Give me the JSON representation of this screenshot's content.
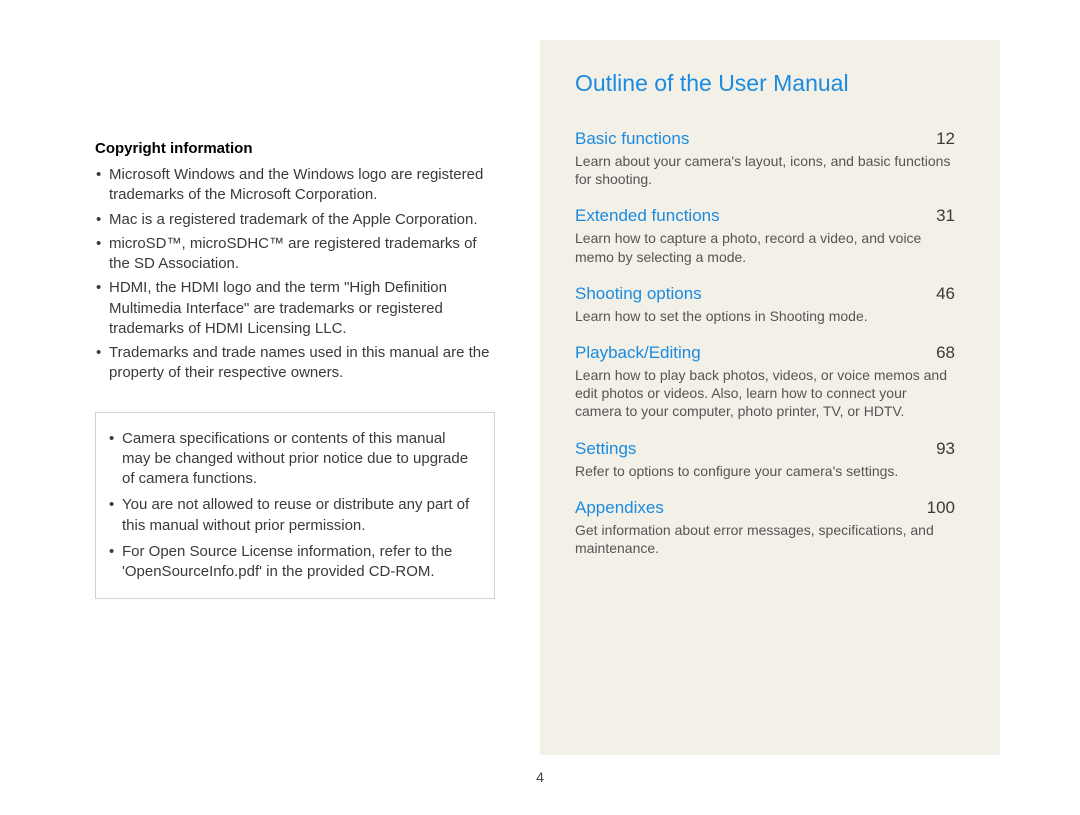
{
  "left": {
    "copyright_heading": "Copyright information",
    "copyright_items": [
      "Microsoft Windows and the Windows logo are registered trademarks of the Microsoft Corporation.",
      "Mac is a registered trademark of the Apple Corporation.",
      "microSD™, microSDHC™ are registered trademarks of the SD Association.",
      "HDMI, the HDMI logo and the term \"High Definition Multimedia Interface\" are trademarks or registered trademarks of HDMI Licensing LLC.",
      "Trademarks and trade names used in this manual are the property of their respective owners."
    ],
    "notice_items": [
      "Camera specifications or contents of this manual may be changed without prior notice due to upgrade of camera functions.",
      "You are not allowed to reuse or distribute any part of this manual without prior permission.",
      "For Open Source License information, refer to the 'OpenSourceInfo.pdf' in the provided CD-ROM."
    ]
  },
  "right": {
    "title": "Outline of the User Manual",
    "entries": [
      {
        "label": "Basic functions",
        "page": "12",
        "desc": "Learn about your camera's layout, icons, and basic functions for shooting."
      },
      {
        "label": "Extended functions",
        "page": "31",
        "desc": "Learn how to capture a photo, record a video, and voice memo by selecting a mode."
      },
      {
        "label": "Shooting options",
        "page": "46",
        "desc": "Learn how to set the options in Shooting mode."
      },
      {
        "label": "Playback/Editing",
        "page": "68",
        "desc": "Learn how to play back photos, videos, or voice memos and edit photos or videos. Also, learn how to connect your camera to your computer, photo printer, TV, or HDTV."
      },
      {
        "label": "Settings",
        "page": "93",
        "desc": "Refer to options to configure your camera's settings."
      },
      {
        "label": "Appendixes",
        "page": "100",
        "desc": "Get information about error messages, specifications, and maintenance."
      }
    ]
  },
  "page_number": "4",
  "colors": {
    "accent": "#1a8be0",
    "text": "#3a3a3a",
    "box_border": "#d6d2c5",
    "right_bg": "#f3f0e7"
  }
}
